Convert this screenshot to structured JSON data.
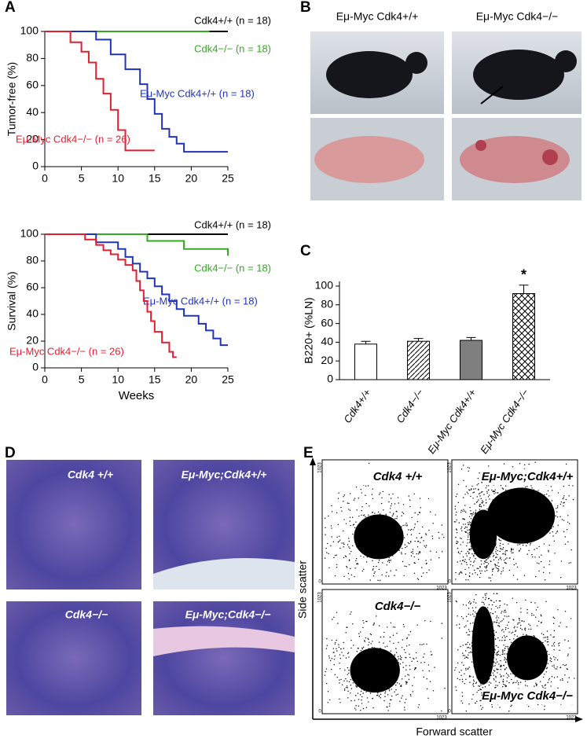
{
  "panel_labels": [
    "A",
    "B",
    "C",
    "D",
    "E"
  ],
  "chart_data": [
    {
      "type": "line",
      "y_label": "Tumor-free (%)",
      "xlim": [
        0,
        25
      ],
      "xticks": [
        0,
        5,
        10,
        15,
        20,
        25
      ],
      "ylim": [
        0,
        100
      ],
      "yticks": [
        0,
        20,
        40,
        60,
        80,
        100
      ],
      "series": [
        {
          "name": "Cdk4+/+ (n = 18)",
          "color": "#000000",
          "x": [
            0,
            25
          ],
          "values": [
            100,
            100
          ]
        },
        {
          "name": "Cdk4−/− (n = 18)",
          "color": "#33aa22",
          "x": [
            0,
            22.5
          ],
          "values": [
            100,
            100
          ]
        },
        {
          "name": "Eμ-Myc Cdk4+/+ (n = 18)",
          "color": "#2233bb",
          "x": [
            0,
            7,
            7,
            9,
            9,
            11,
            11,
            13,
            13,
            14,
            14,
            15,
            15,
            16,
            16,
            17,
            17,
            18,
            18,
            19,
            19,
            25
          ],
          "values": [
            100,
            100,
            94,
            94,
            83,
            83,
            72,
            72,
            61,
            61,
            50,
            50,
            39,
            39,
            28,
            28,
            22,
            22,
            17,
            17,
            11,
            11
          ]
        },
        {
          "name": "Eμ-Myc Cdk4−/− (n = 26)",
          "color": "#e02030",
          "x": [
            0,
            3.5,
            3.5,
            5,
            5,
            6,
            6,
            7,
            7,
            8,
            8,
            9,
            9,
            10,
            10,
            11,
            11,
            15
          ],
          "values": [
            100,
            100,
            92,
            92,
            85,
            85,
            77,
            77,
            65,
            65,
            54,
            54,
            42,
            42,
            27,
            27,
            12,
            12
          ]
        }
      ]
    },
    {
      "type": "line",
      "x_label": "Weeks",
      "y_label": "Survival (%)",
      "xlim": [
        0,
        25
      ],
      "xticks": [
        0,
        5,
        10,
        15,
        20,
        25
      ],
      "ylim": [
        0,
        100
      ],
      "yticks": [
        0,
        20,
        40,
        60,
        80,
        100
      ],
      "series": [
        {
          "name": "Cdk4+/+ (n = 18)",
          "color": "#000000",
          "x": [
            0,
            25
          ],
          "values": [
            100,
            100
          ]
        },
        {
          "name": "Cdk4−/− (n = 18)",
          "color": "#33aa22",
          "x": [
            0,
            14,
            14,
            19,
            19,
            25,
            25
          ],
          "values": [
            100,
            100,
            95,
            95,
            89,
            89,
            84
          ]
        },
        {
          "name": "Eμ-Myc Cdk4+/+ (n = 18)",
          "color": "#2233bb",
          "x": [
            0,
            7,
            7,
            10,
            10,
            11,
            11,
            12,
            12,
            13,
            13,
            14,
            14,
            15,
            15,
            16,
            16,
            17,
            17,
            18,
            18,
            19,
            19,
            21,
            21,
            22,
            22,
            23,
            23,
            24,
            24,
            25
          ],
          "values": [
            100,
            100,
            94,
            94,
            89,
            89,
            83,
            83,
            78,
            78,
            72,
            72,
            67,
            67,
            61,
            61,
            55,
            55,
            50,
            50,
            44,
            44,
            39,
            39,
            33,
            33,
            28,
            28,
            22,
            22,
            17,
            17
          ]
        },
        {
          "name": "Eμ-Myc Cdk4−/− (n = 26)",
          "color": "#e02030",
          "x": [
            0,
            5.5,
            5.5,
            7,
            7,
            8,
            8,
            9,
            9,
            10,
            10,
            11,
            11,
            12,
            12,
            12.5,
            12.5,
            13,
            13,
            13.5,
            13.5,
            14,
            14,
            14.5,
            14.5,
            15,
            15,
            16,
            16,
            17,
            17,
            17.5,
            17.5,
            18
          ],
          "values": [
            100,
            100,
            96,
            96,
            92,
            92,
            88,
            88,
            85,
            85,
            81,
            81,
            77,
            77,
            73,
            73,
            65,
            65,
            58,
            58,
            50,
            50,
            42,
            42,
            35,
            35,
            27,
            27,
            19,
            19,
            12,
            12,
            8,
            8
          ]
        }
      ]
    },
    {
      "type": "bar",
      "y_label": "B220+ (%LN)",
      "categories": [
        "Cdk4+/+",
        "Cdk4−/−",
        "Eμ-Myc Cdk4+/+",
        "Eμ-Myc Cdk4−/−"
      ],
      "values": [
        38,
        41,
        42,
        92
      ],
      "errors": [
        3,
        3,
        3,
        9
      ],
      "colors": [
        "#ffffff",
        "#ffffff",
        "#7f7f7f",
        "#ffffff"
      ],
      "patterns": [
        "none",
        "diagonal",
        "none",
        "crosshatch"
      ],
      "annotation": "*",
      "ylim": [
        0,
        105
      ],
      "yticks": [
        0,
        20,
        40,
        60,
        80,
        100
      ]
    }
  ],
  "photos": {
    "labels": [
      "Eμ-Myc Cdk4+/+",
      "Eμ-Myc Cdk4−/−"
    ]
  },
  "histology": {
    "labels": [
      "Cdk4 +/+",
      "Eμ-Myc;Cdk4+/+",
      "Cdk4−/−",
      "Eμ-Myc;Cdk4−/−"
    ]
  },
  "flow": {
    "labels": [
      "Cdk4 +/+",
      "Eμ-Myc;Cdk4+/+",
      "Cdk4−/−",
      "Eμ-Myc Cdk4−/−"
    ],
    "y_label": "Side scatter",
    "x_label": "Forward scatter",
    "axis_max": "1023",
    "axis_min": "0"
  }
}
